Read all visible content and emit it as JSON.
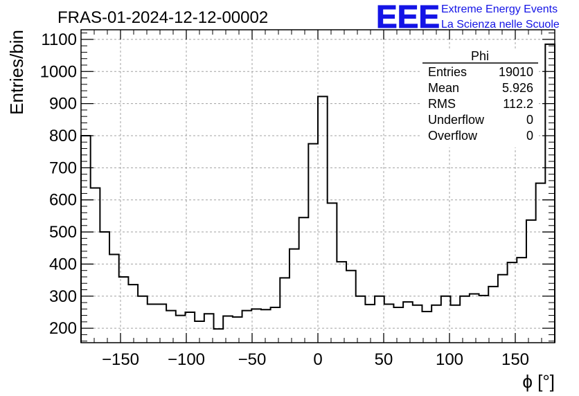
{
  "chart_data": {
    "type": "histogram",
    "title": "FRAS-01-2024-12-12-00002",
    "xlabel": "ϕ [°]",
    "ylabel": "Entries/bin",
    "xlim": [
      -180,
      180
    ],
    "ylim": [
      155,
      1130
    ],
    "grid": true,
    "bin_width": 7.2,
    "x_ticks": [
      -150,
      -100,
      -50,
      0,
      50,
      100,
      150
    ],
    "x_tick_labels": [
      "−150",
      "−100",
      "−50",
      "0",
      "50",
      "100",
      "150"
    ],
    "y_ticks": [
      200,
      300,
      400,
      500,
      600,
      700,
      800,
      900,
      1000,
      1100
    ],
    "y_tick_labels": [
      "200",
      "300",
      "400",
      "500",
      "600",
      "700",
      "800",
      "900",
      "1000",
      "1100"
    ],
    "values": [
      800,
      637,
      500,
      430,
      360,
      336,
      300,
      275,
      275,
      255,
      240,
      250,
      222,
      245,
      198,
      238,
      235,
      255,
      260,
      258,
      265,
      357,
      447,
      545,
      775,
      922,
      590,
      407,
      380,
      300,
      274,
      300,
      275,
      265,
      282,
      272,
      252,
      272,
      300,
      272,
      300,
      307,
      302,
      330,
      367,
      405,
      420,
      537,
      652,
      1085
    ],
    "stats": {
      "title": "Phi",
      "rows": [
        {
          "label": "Entries",
          "value": "19010"
        },
        {
          "label": "Mean",
          "value": "5.926"
        },
        {
          "label": "RMS",
          "value": "112.2"
        },
        {
          "label": "Underflow",
          "value": "0"
        },
        {
          "label": "Overflow",
          "value": "0"
        }
      ]
    },
    "logo": {
      "mark": "EEE",
      "line1": "Extreme Energy Events",
      "line2": "La Scienza nelle Scuole",
      "color": "#1414e6"
    }
  }
}
